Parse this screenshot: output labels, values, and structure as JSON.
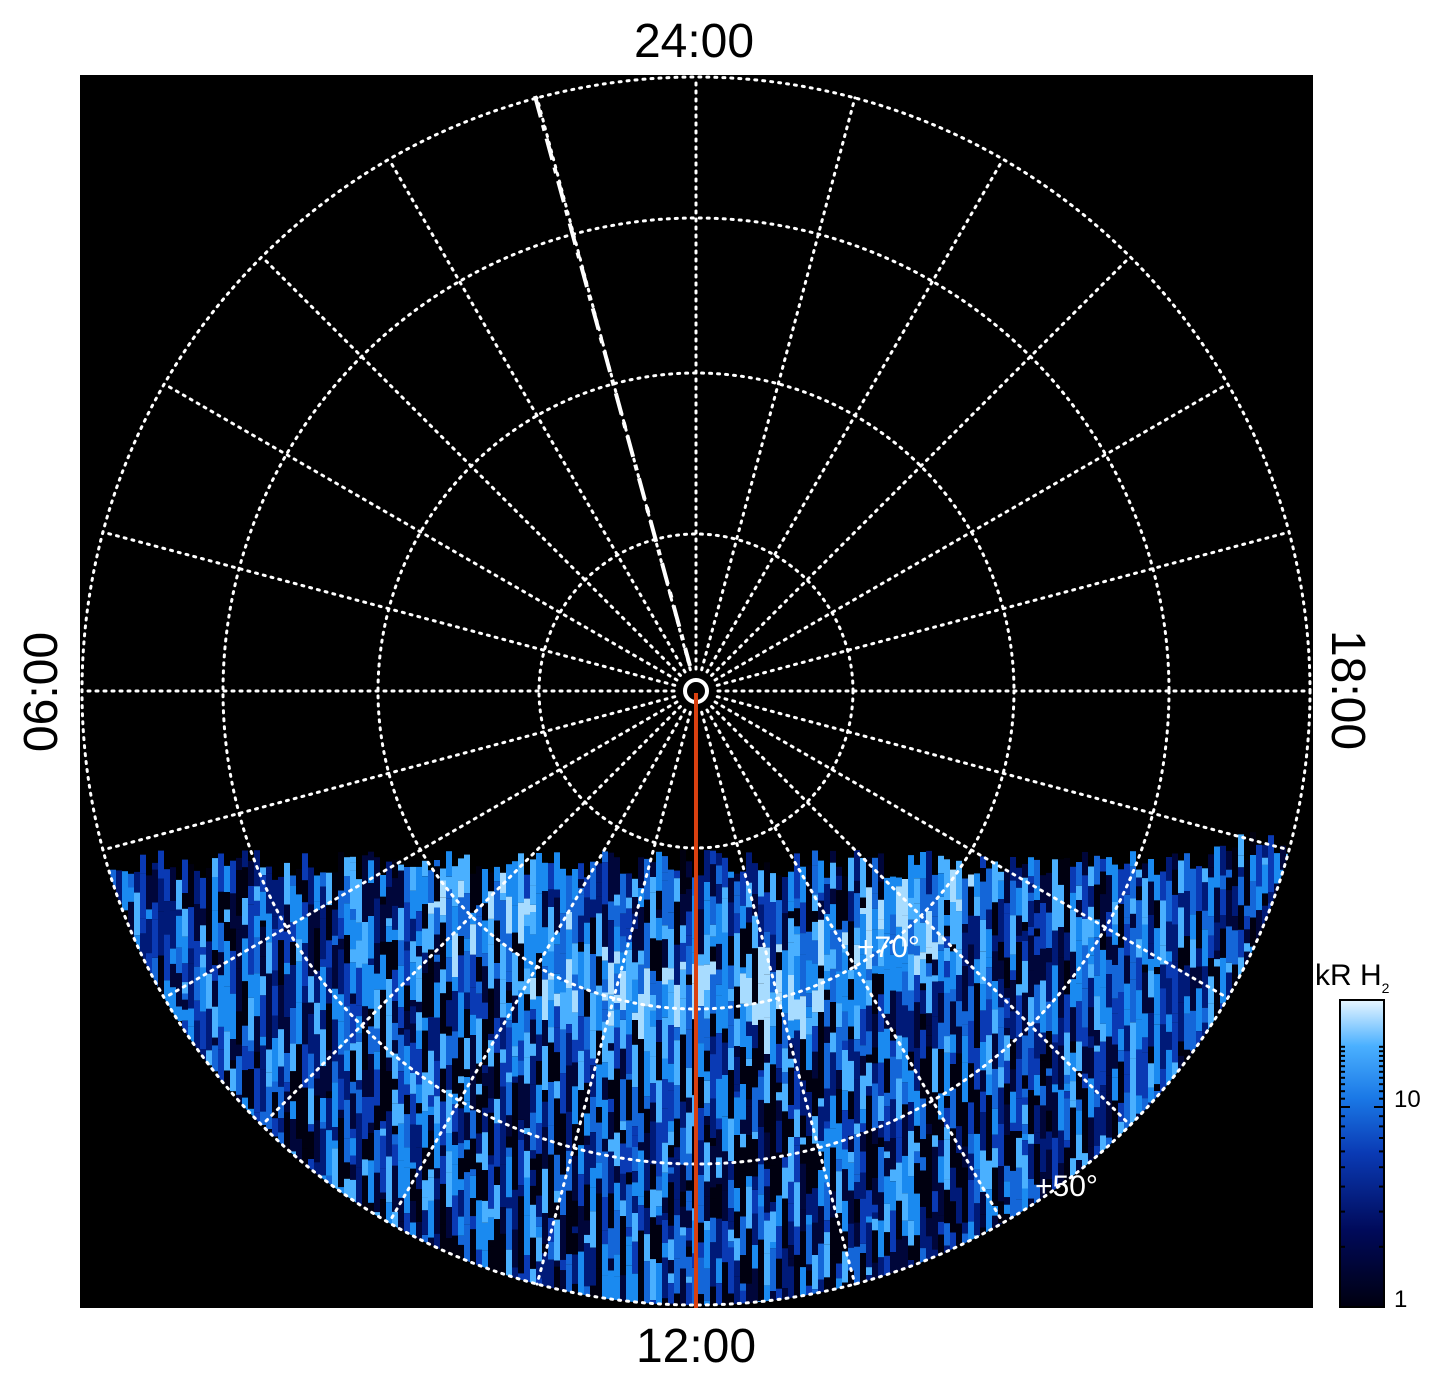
{
  "local_time_labels": {
    "top": "24:00",
    "bottom": "12:00",
    "left": "06:00",
    "right": "18:00"
  },
  "latitude_labels": {
    "upper": "+70°",
    "lower": "+50°"
  },
  "colorbar": {
    "title_main": "kR H",
    "title_sub": "2",
    "tick_labels": [
      "10",
      "1"
    ],
    "scale": "log",
    "colors": [
      "#000010",
      "#000a5a",
      "#0a3ab4",
      "#1a78e6",
      "#4ab0ff",
      "#d8eeff"
    ]
  },
  "colors": {
    "background": "#000000",
    "grid": "#ffffff",
    "meridian_line": "#d94010",
    "page": "#ffffff"
  },
  "projection": "polar",
  "grid": "dotted"
}
